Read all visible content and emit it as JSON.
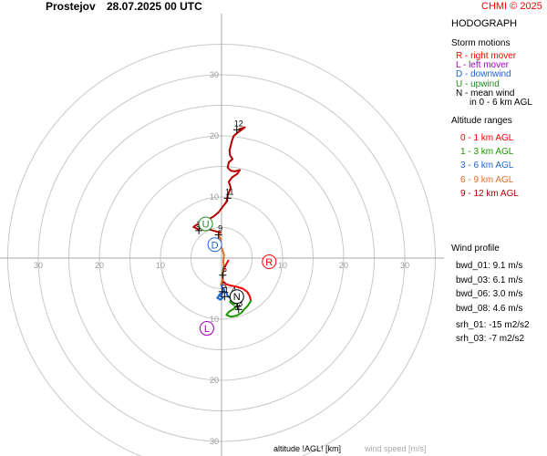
{
  "header": {
    "station": "Prostejov",
    "datetime": "28.07.2025 00 UTC",
    "credit": "CHMI © 2025",
    "credit_color": "#ff0000"
  },
  "panel": {
    "title": "HODOGRAPH",
    "storm_motions_title": "Storm motions",
    "storm_motions": [
      {
        "text": "R - right mover",
        "color": "#ff0000"
      },
      {
        "text": "L - left mover",
        "color": "#a000c0"
      },
      {
        "text": "D - downwind",
        "color": "#1e64d2"
      },
      {
        "text": "U - upwind",
        "color": "#1e8c1e"
      },
      {
        "text": "N - mean wind",
        "color": "#000000"
      },
      {
        "text": "in 0 - 6 km AGL",
        "color": "#000000"
      }
    ],
    "altitude_ranges_title": "Altitude ranges",
    "altitude_ranges": [
      {
        "text": "0 - 1 km AGL",
        "color": "#ff0000"
      },
      {
        "text": "1 - 3 km AGL",
        "color": "#1e9600"
      },
      {
        "text": "3 - 6 km AGL",
        "color": "#1e64d2"
      },
      {
        "text": "6 - 9 km AGL",
        "color": "#e06e28"
      },
      {
        "text": "9 - 12 km AGL",
        "color": "#b40000"
      }
    ],
    "wind_profile_title": "Wind profile",
    "wind_profile": [
      "bwd_01: 9.1 m/s",
      "bwd_03: 6.1 m/s",
      "bwd_06: 3.0 m/s",
      "bwd_08: 4.6 m/s",
      "srh_01: -15 m2/s2",
      "srh_03: -7 m2/s2"
    ]
  },
  "footer": {
    "altitude_label": "altitude !AGL! [km]",
    "speed_label": "wind speed [m/s]",
    "speed_color": "#aaaaaa"
  },
  "chart_data": {
    "type": "line",
    "title": "HODOGRAPH",
    "xlabel": "",
    "ylabel": "",
    "xlim": [
      -36,
      36
    ],
    "ylim": [
      -36,
      36
    ],
    "rings": [
      5,
      10,
      15,
      20,
      25,
      30,
      35
    ],
    "tick_labels": [
      "30",
      "20",
      "10",
      "10",
      "20",
      "30"
    ],
    "ring_color": "#c8c8c8",
    "axis_color": "#aaaaaa",
    "series": [
      {
        "color": "#ff0000",
        "points": [
          [
            1.1,
            -0.4
          ],
          [
            0.5,
            -1.5
          ],
          [
            0.2,
            -2.5
          ],
          [
            0.2,
            -3.8
          ],
          [
            0.8,
            -4.3
          ],
          [
            1.5,
            -4.5
          ],
          [
            2.5,
            -4.7
          ],
          [
            3.5,
            -5.0
          ],
          [
            4.2,
            -5.5
          ],
          [
            4.6,
            -6.2
          ],
          [
            4.8,
            -7.0
          ]
        ]
      },
      {
        "color": "#1e9600",
        "points": [
          [
            4.8,
            -7.0
          ],
          [
            4.3,
            -7.8
          ],
          [
            3.8,
            -8.3
          ],
          [
            3.2,
            -9.0
          ],
          [
            2.5,
            -9.4
          ],
          [
            1.5,
            -9.6
          ],
          [
            0.8,
            -9.3
          ],
          [
            1.2,
            -8.8
          ],
          [
            2.0,
            -8.3
          ],
          [
            2.6,
            -7.8
          ],
          [
            2.4,
            -7.3
          ],
          [
            1.9,
            -7.6
          ],
          [
            1.4,
            -7.2
          ],
          [
            1.6,
            -6.7
          ]
        ]
      },
      {
        "color": "#1e64d2",
        "points": [
          [
            1.6,
            -6.7
          ],
          [
            1.0,
            -6.2
          ],
          [
            0.8,
            -5.6
          ],
          [
            0.2,
            -5.6
          ],
          [
            -0.4,
            -6.0
          ],
          [
            0.2,
            -6.5
          ],
          [
            -0.2,
            -6.8
          ],
          [
            -0.7,
            -6.5
          ],
          [
            -0.2,
            -6.0
          ],
          [
            0.5,
            -5.3
          ],
          [
            0.1,
            -4.8
          ],
          [
            -0.1,
            -4.3
          ]
        ]
      },
      {
        "color": "#e06e28",
        "points": [
          [
            -0.1,
            -4.3
          ],
          [
            0.2,
            -3.5
          ],
          [
            0.1,
            -2.5
          ],
          [
            0.4,
            -1.5
          ],
          [
            0.3,
            -0.5
          ],
          [
            0.4,
            0.5
          ],
          [
            0.1,
            1.5
          ],
          [
            -0.3,
            2.3
          ],
          [
            -0.1,
            3.0
          ],
          [
            -0.5,
            3.8
          ],
          [
            -0.2,
            4.2
          ]
        ]
      },
      {
        "color": "#b40000",
        "points": [
          [
            -0.2,
            4.2
          ],
          [
            -1.4,
            4.5
          ],
          [
            -2.4,
            4.8
          ],
          [
            -3.0,
            5.2
          ],
          [
            -3.8,
            4.7
          ],
          [
            -4.6,
            5.1
          ],
          [
            -4.0,
            5.5
          ],
          [
            -3.0,
            6.0
          ],
          [
            -2.0,
            6.4
          ],
          [
            -1.2,
            6.9
          ],
          [
            -0.5,
            7.5
          ],
          [
            0.2,
            8.4
          ],
          [
            0.8,
            9.2
          ],
          [
            1.0,
            10.2
          ],
          [
            1.5,
            11.5
          ],
          [
            1.2,
            12.5
          ],
          [
            1.7,
            13.2
          ],
          [
            2.6,
            13.8
          ],
          [
            3.0,
            14.4
          ],
          [
            2.2,
            14.2
          ],
          [
            1.5,
            14.3
          ],
          [
            1.0,
            14.8
          ],
          [
            1.2,
            15.7
          ],
          [
            1.8,
            16.2
          ],
          [
            1.4,
            16.8
          ],
          [
            1.3,
            17.6
          ],
          [
            1.5,
            18.4
          ],
          [
            1.7,
            19.2
          ],
          [
            2.0,
            20.0
          ],
          [
            2.7,
            20.6
          ],
          [
            3.3,
            21.0
          ],
          [
            3.8,
            21.4
          ],
          [
            2.9,
            21.1
          ]
        ]
      }
    ],
    "altitude_marks": [
      {
        "label": "1",
        "x": 0.5,
        "y": -6.3
      },
      {
        "label": "2",
        "x": 2.6,
        "y": -7.9
      },
      {
        "label": "3",
        "x": 2.8,
        "y": -8.4
      },
      {
        "label": "4",
        "x": 1.7,
        "y": -6.3
      },
      {
        "label": "5",
        "x": 0.1,
        "y": -5.5
      },
      {
        "label": "6",
        "x": 0.2,
        "y": -2.8
      },
      {
        "label": "9",
        "x": -0.5,
        "y": 3.8
      },
      {
        "label": "10",
        "x": -3.7,
        "y": 4.5
      },
      {
        "label": "11",
        "x": 1.0,
        "y": 9.8
      },
      {
        "label": "12",
        "x": 2.5,
        "y": 21.0
      }
    ],
    "markers": [
      {
        "label": "R",
        "x": 7.8,
        "y": -0.6,
        "color": "#ff0000"
      },
      {
        "label": "L",
        "x": -2.4,
        "y": -11.5,
        "color": "#a000c0"
      },
      {
        "label": "D",
        "x": -1.1,
        "y": 2.2,
        "color": "#1e64d2"
      },
      {
        "label": "U",
        "x": -2.6,
        "y": 5.6,
        "color": "#1e8c1e"
      },
      {
        "label": "N",
        "x": 2.5,
        "y": -6.3,
        "color": "#000000"
      }
    ]
  }
}
